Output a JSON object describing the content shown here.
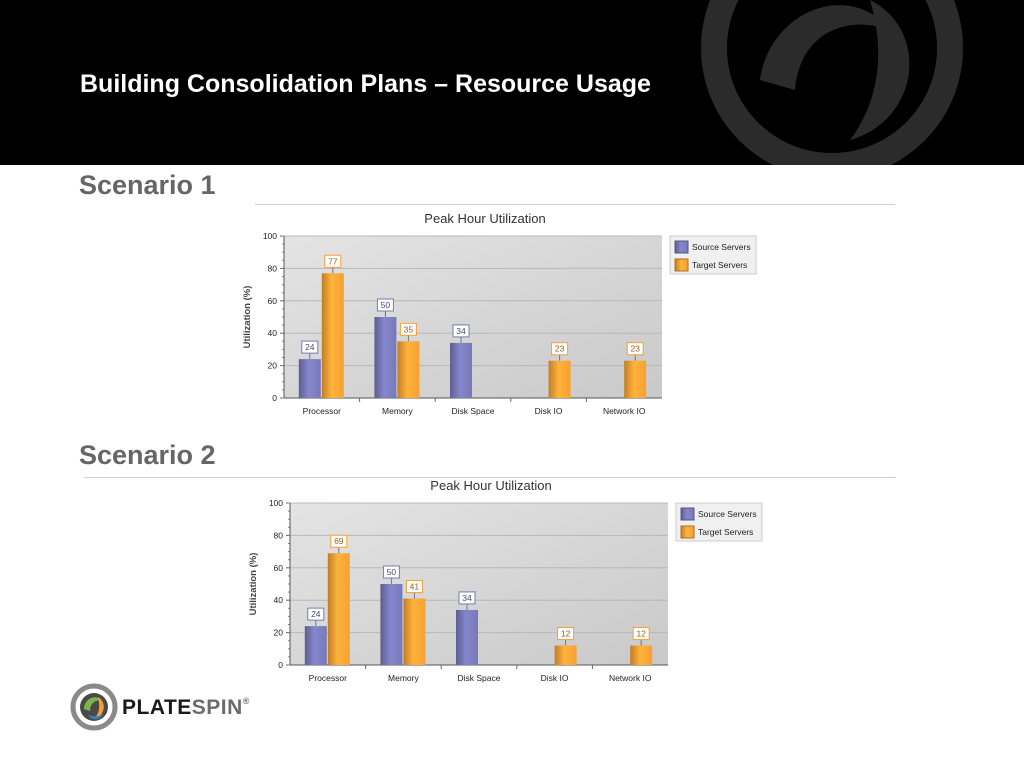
{
  "slide": {
    "title": "Building Consolidation Plans – Resource Usage",
    "colors": {
      "header_bg": "#000000",
      "heading": "#666666",
      "source": "#7878b8",
      "target": "#f6a033"
    }
  },
  "scenarios": [
    {
      "heading": "Scenario 1"
    },
    {
      "heading": "Scenario 2"
    }
  ],
  "chart_data": [
    {
      "type": "bar",
      "title": "Peak Hour Utilization",
      "xlabel": "",
      "ylabel": "Utilization (%)",
      "ylim": [
        0,
        100
      ],
      "yticks": [
        0,
        20,
        40,
        60,
        80,
        100
      ],
      "categories": [
        "Processor",
        "Memory",
        "Disk Space",
        "Disk IO",
        "Network IO"
      ],
      "series": [
        {
          "name": "Source Servers",
          "color": "#7878b8",
          "values": [
            24,
            50,
            34,
            null,
            null
          ]
        },
        {
          "name": "Target Servers",
          "color": "#f6a033",
          "values": [
            77,
            35,
            null,
            23,
            23
          ]
        }
      ],
      "legend": "right",
      "grid": true
    },
    {
      "type": "bar",
      "title": "Peak Hour Utilization",
      "xlabel": "",
      "ylabel": "Utilization (%)",
      "ylim": [
        0,
        100
      ],
      "yticks": [
        0,
        20,
        40,
        60,
        80,
        100
      ],
      "categories": [
        "Processor",
        "Memory",
        "Disk Space",
        "Disk IO",
        "Network IO"
      ],
      "series": [
        {
          "name": "Source Servers",
          "color": "#7878b8",
          "values": [
            24,
            50,
            34,
            null,
            null
          ]
        },
        {
          "name": "Target Servers",
          "color": "#f6a033",
          "values": [
            69,
            41,
            null,
            12,
            12
          ]
        }
      ],
      "legend": "right",
      "grid": true
    }
  ],
  "brand": {
    "part1": "PLATE",
    "part2": "SPIN",
    "reg": "®"
  }
}
